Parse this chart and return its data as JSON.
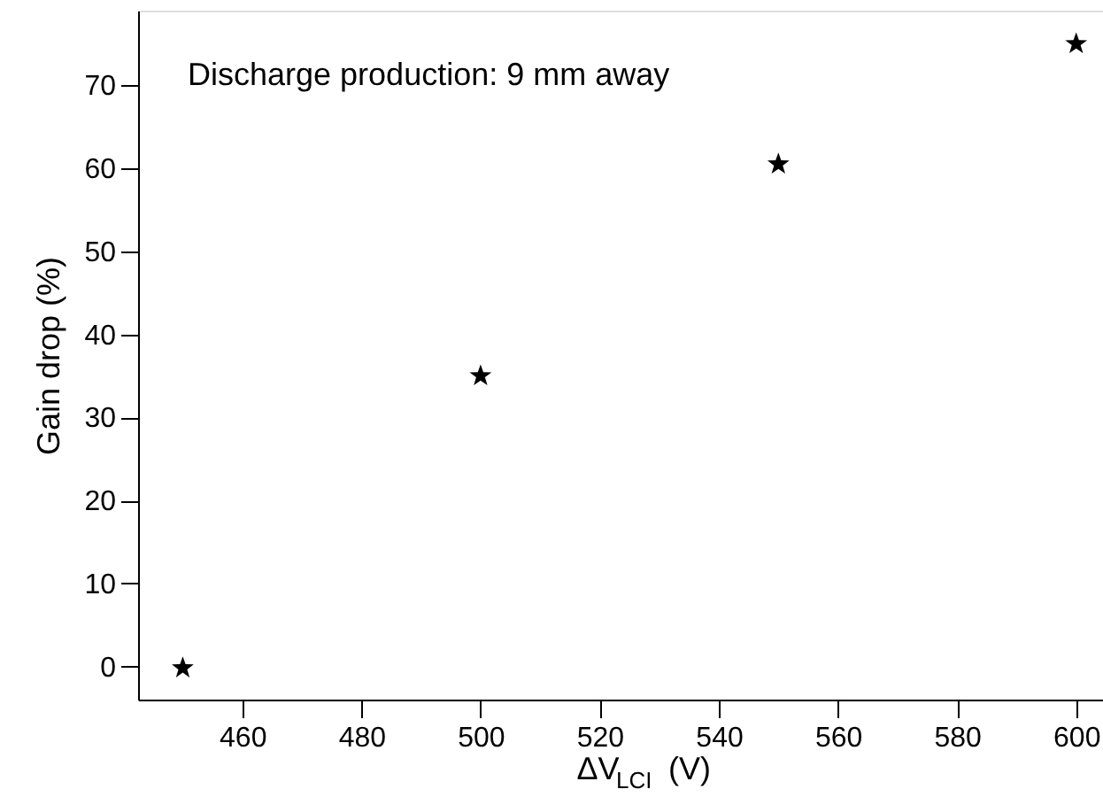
{
  "chart_data": {
    "type": "scatter",
    "x": [
      450,
      500,
      550,
      600
    ],
    "values": [
      -0.2,
      35,
      60.5,
      75
    ],
    "color": "#000000",
    "marker": "star",
    "xlabel": "ΔV$_{LCI}$ (V)",
    "ylabel": "Gain drop (%)",
    "annotations": [
      "Discharge production: 9 mm away"
    ],
    "xlim": [
      442.5,
      604.5
    ],
    "ylim": [
      -4,
      79
    ],
    "xticks": [
      460,
      480,
      500,
      520,
      540,
      560,
      580,
      600
    ],
    "yticks": [
      0,
      10,
      20,
      30,
      40,
      50,
      60,
      70
    ],
    "grid": false
  }
}
